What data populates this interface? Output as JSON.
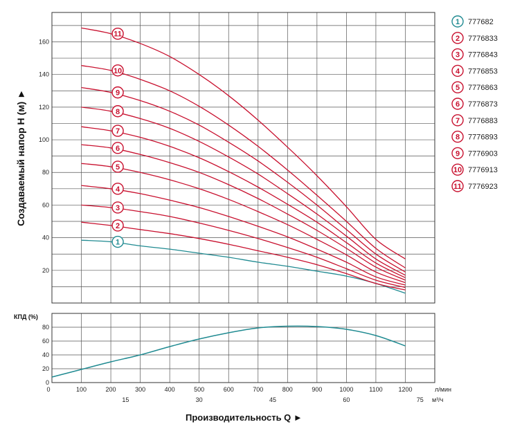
{
  "chart_data": [
    {
      "type": "line",
      "ylabel": "Создаваемый напор H (м) ►",
      "xlim": [
        0,
        1300
      ],
      "ylim": [
        0,
        178
      ],
      "yticks": [
        20,
        40,
        60,
        80,
        100,
        120,
        140,
        160
      ],
      "grid": true,
      "legend": "right",
      "colors": {
        "model_1": "#1f8a91",
        "other_models": "#c8102e"
      },
      "series": [
        {
          "name": "777682",
          "badge": "1",
          "color": "#1f8a91",
          "x": [
            100,
            200,
            300,
            400,
            500,
            600,
            700,
            800,
            900,
            1000,
            1100,
            1200
          ],
          "values": [
            38.5,
            37.5,
            35,
            33,
            30.5,
            28,
            25,
            22.5,
            19.5,
            16.5,
            12,
            6
          ]
        },
        {
          "name": "7776833",
          "badge": "2",
          "color": "#c8102e",
          "x": [
            100,
            200,
            300,
            400,
            500,
            600,
            700,
            800,
            900,
            1000,
            1100,
            1200
          ],
          "values": [
            49.5,
            47.5,
            45,
            42.5,
            39.5,
            36,
            32,
            28,
            23.5,
            18,
            12,
            8
          ]
        },
        {
          "name": "7776843",
          "badge": "3",
          "color": "#c8102e",
          "x": [
            100,
            200,
            300,
            400,
            500,
            600,
            700,
            800,
            900,
            1000,
            1100,
            1200
          ],
          "values": [
            60,
            58.5,
            56,
            53,
            49,
            44.5,
            39.5,
            34,
            28,
            21,
            14,
            9.5
          ]
        },
        {
          "name": "7776853",
          "badge": "4",
          "color": "#c8102e",
          "x": [
            100,
            200,
            300,
            400,
            500,
            600,
            700,
            800,
            900,
            1000,
            1100,
            1200
          ],
          "values": [
            72,
            70,
            67,
            63,
            58.5,
            53,
            47,
            40.5,
            33,
            25,
            16,
            11
          ]
        },
        {
          "name": "7776863",
          "badge": "5",
          "color": "#c8102e",
          "x": [
            100,
            200,
            300,
            400,
            500,
            600,
            700,
            800,
            900,
            1000,
            1100,
            1200
          ],
          "values": [
            85.5,
            83.5,
            80,
            75.5,
            70,
            63.5,
            56,
            48,
            39,
            29.5,
            19,
            12.5
          ]
        },
        {
          "name": "7776873",
          "badge": "6",
          "color": "#c8102e",
          "x": [
            100,
            200,
            300,
            400,
            500,
            600,
            700,
            800,
            900,
            1000,
            1100,
            1200
          ],
          "values": [
            97,
            95,
            91,
            86,
            80,
            72.5,
            64,
            54.5,
            44.5,
            33.5,
            22,
            14
          ]
        },
        {
          "name": "7776883",
          "badge": "7",
          "color": "#c8102e",
          "x": [
            100,
            200,
            300,
            400,
            500,
            600,
            700,
            800,
            900,
            1000,
            1100,
            1200
          ],
          "values": [
            108,
            105.5,
            101.5,
            96,
            89,
            80.5,
            71,
            60.5,
            49.5,
            37,
            24.5,
            15.5
          ]
        },
        {
          "name": "7776893",
          "badge": "8",
          "color": "#c8102e",
          "x": [
            100,
            200,
            300,
            400,
            500,
            600,
            700,
            800,
            900,
            1000,
            1100,
            1200
          ],
          "values": [
            120,
            117.5,
            113,
            107,
            99,
            89.5,
            79,
            67,
            54.5,
            41,
            27,
            17
          ]
        },
        {
          "name": "7776903",
          "badge": "9",
          "color": "#c8102e",
          "x": [
            100,
            200,
            300,
            400,
            500,
            600,
            700,
            800,
            900,
            1000,
            1100,
            1200
          ],
          "values": [
            132,
            129,
            124,
            117.5,
            109,
            98.5,
            87,
            74,
            60,
            45,
            30,
            19
          ]
        },
        {
          "name": "7776913",
          "badge": "10",
          "color": "#c8102e",
          "x": [
            100,
            200,
            300,
            400,
            500,
            600,
            700,
            800,
            900,
            1000,
            1100,
            1200
          ],
          "values": [
            145.5,
            142.5,
            137,
            130,
            120.5,
            109,
            96,
            81.5,
            66,
            50,
            33.5,
            21.5
          ]
        },
        {
          "name": "7776923",
          "badge": "11",
          "color": "#c8102e",
          "x": [
            100,
            200,
            300,
            400,
            500,
            600,
            700,
            800,
            900,
            1000,
            1100,
            1200
          ],
          "values": [
            168.5,
            165,
            159,
            151,
            140,
            127,
            112,
            95.5,
            78,
            59,
            39,
            27
          ]
        }
      ]
    },
    {
      "type": "line",
      "ylabel": "КПД (%)",
      "xlabel": "Производительность Q ►",
      "xlim": [
        0,
        1300
      ],
      "ylim": [
        0,
        100
      ],
      "yticks": [
        0,
        20,
        40,
        60,
        80
      ],
      "grid": true,
      "x_ticks": [
        0,
        100,
        200,
        300,
        400,
        500,
        600,
        700,
        800,
        900,
        1000,
        1100,
        1200
      ],
      "x_unit": "л/мин",
      "x2_ticks": [
        15,
        30,
        45,
        60,
        75
      ],
      "x2_unit": "м³/ч",
      "series": [
        {
          "name": "КПД",
          "color": "#1f8a91",
          "x": [
            0,
            100,
            200,
            300,
            400,
            500,
            600,
            700,
            800,
            900,
            1000,
            1100,
            1200
          ],
          "values": [
            8,
            19,
            30,
            40,
            52,
            63,
            72,
            79,
            81.5,
            81,
            77,
            68,
            53
          ]
        }
      ]
    }
  ]
}
